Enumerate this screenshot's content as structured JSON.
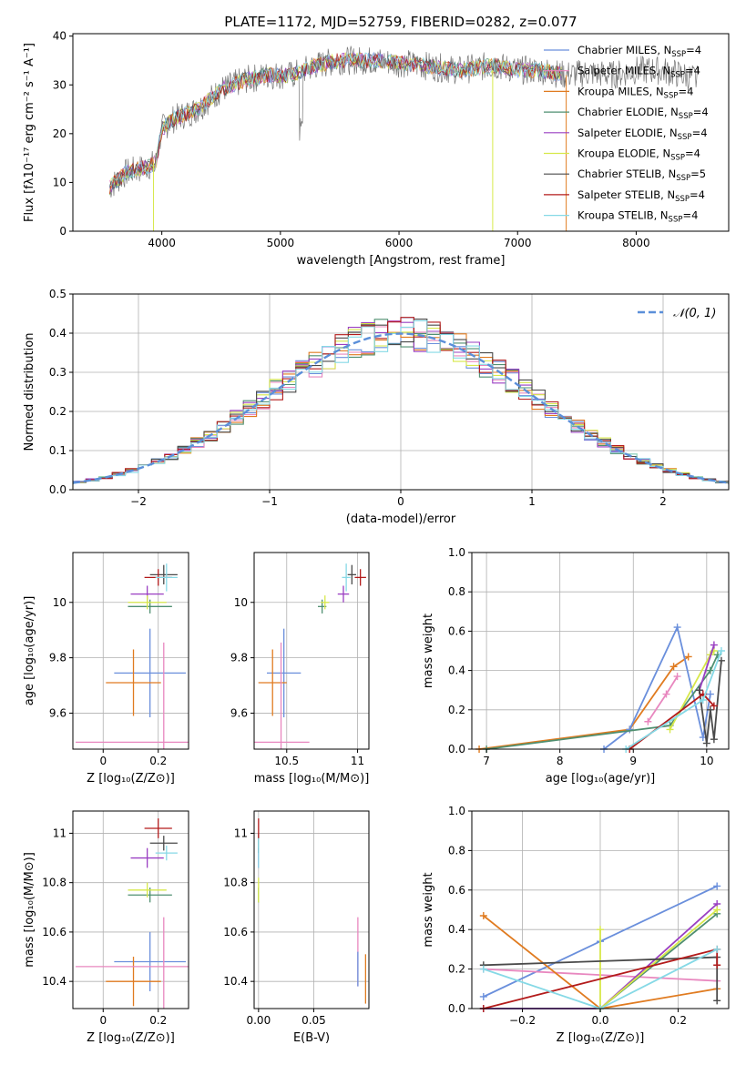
{
  "figure": {
    "title": "PLATE=1172, MJD=52759, FIBERID=0282, z=0.077"
  },
  "model_legend": [
    {
      "label": "Chabrier MILES, N",
      "sub": "SSP",
      "tail": "=4",
      "color": "#6a8fdc"
    },
    {
      "label": "Salpeter MILES, N",
      "sub": "SSP",
      "tail": "=4",
      "color": "#e887bf"
    },
    {
      "label": "Kroupa MILES, N",
      "sub": "SSP",
      "tail": "=4",
      "color": "#e07b20"
    },
    {
      "label": "Chabrier ELODIE, N",
      "sub": "SSP",
      "tail": "=4",
      "color": "#4f8f70"
    },
    {
      "label": "Salpeter ELODIE, N",
      "sub": "SSP",
      "tail": "=4",
      "color": "#9a3fc2"
    },
    {
      "label": "Kroupa ELODIE, N",
      "sub": "SSP",
      "tail": "=4",
      "color": "#d7e84a"
    },
    {
      "label": "Chabrier STELIB, N",
      "sub": "SSP",
      "tail": "=5",
      "color": "#4a4a4a"
    },
    {
      "label": "Salpeter STELIB, N",
      "sub": "SSP",
      "tail": "=4",
      "color": "#b31b1b"
    },
    {
      "label": "Kroupa STELIB, N",
      "sub": "SSP",
      "tail": "=4",
      "color": "#86d9e6"
    }
  ],
  "chart_data": [
    {
      "id": "spectrum",
      "type": "line",
      "xlabel": "wavelength [Angstrom, rest frame]",
      "ylabel": "Flux [fλ10⁻¹⁷ erg cm⁻² s⁻¹ A⁻¹]",
      "xlim": [
        3250,
        8780
      ],
      "ylim": [
        0,
        40.5
      ],
      "xticks": [
        4000,
        5000,
        6000,
        7000,
        8000
      ],
      "yticks": [
        0,
        10,
        20,
        30,
        40
      ],
      "legend_position": "right",
      "continuum": {
        "x": [
          3560,
          3700,
          3850,
          3950,
          4000,
          4100,
          4200,
          4300,
          4400,
          4500,
          4700,
          4900,
          5100,
          5300,
          5500,
          5800,
          6000,
          6200,
          6500,
          6800,
          7000,
          7200,
          7400,
          7600,
          7800,
          8000,
          8200,
          8400,
          8520
        ],
        "y": [
          9,
          12,
          13,
          14,
          21,
          23,
          24,
          25,
          27,
          29,
          31,
          32,
          32,
          34,
          35,
          35,
          34.5,
          34,
          33,
          34,
          33,
          33,
          32,
          32.5,
          32,
          33,
          33,
          32,
          31
        ]
      }
    },
    {
      "id": "residuals",
      "type": "histogram",
      "xlabel": "(data-model)/error",
      "ylabel": "Normed distribution",
      "xlim": [
        -2.5,
        2.5
      ],
      "ylim": [
        0,
        0.5
      ],
      "xticks": [
        -2,
        -1,
        0,
        1,
        2
      ],
      "xtick_labels": [
        "−2",
        "−1",
        "0",
        "1",
        "2"
      ],
      "yticks": [
        0,
        0.1,
        0.2,
        0.3,
        0.4,
        0.5
      ],
      "ytick_labels": [
        "0.0",
        "0.1",
        "0.2",
        "0.3",
        "0.4",
        "0.5"
      ],
      "grid": true,
      "bin_width": 0.1,
      "legend": "𝒩(0, 1)",
      "legend_position": "top-right"
    },
    {
      "id": "age_vs_Z",
      "type": "scatter",
      "xlabel": "Z [log₁₀(Z/Z⊙)]",
      "ylabel": "age  [log₁₀(age/yr)]",
      "xlim": [
        -0.11,
        0.31
      ],
      "ylim": [
        9.47,
        10.18
      ],
      "xticks": [
        0.0,
        0.2
      ],
      "yticks": [
        9.6,
        9.8,
        10.0
      ],
      "grid": true,
      "points": [
        {
          "x": 0.17,
          "y": 9.745,
          "xerr": 0.13,
          "yerr": 0.16,
          "color": "#6a8fdc"
        },
        {
          "x": 0.11,
          "y": 9.71,
          "xerr": 0.1,
          "yerr": 0.12,
          "color": "#e07b20"
        },
        {
          "x": 0.22,
          "y": 9.495,
          "xerr": 0.32,
          "yerr": 0.36,
          "color": "#e887bf"
        },
        {
          "x": 0.17,
          "y": 9.985,
          "xerr": 0.08,
          "yerr": 0.025,
          "color": "#4f8f70"
        },
        {
          "x": 0.16,
          "y": 10.03,
          "xerr": 0.06,
          "yerr": 0.03,
          "color": "#9a3fc2"
        },
        {
          "x": 0.16,
          "y": 10.0,
          "xerr": 0.07,
          "yerr": 0.025,
          "color": "#d7e84a"
        },
        {
          "x": 0.22,
          "y": 10.1,
          "xerr": 0.05,
          "yerr": 0.035,
          "color": "#4a4a4a"
        },
        {
          "x": 0.2,
          "y": 10.09,
          "xerr": 0.05,
          "yerr": 0.03,
          "color": "#b31b1b"
        },
        {
          "x": 0.23,
          "y": 10.09,
          "xerr": 0.04,
          "yerr": 0.05,
          "color": "#86d9e6"
        }
      ]
    },
    {
      "id": "age_vs_mass",
      "type": "scatter",
      "xlabel": "mass [log₁₀(M/M⊙)]",
      "ylabel": "",
      "xlim": [
        10.27,
        11.08
      ],
      "ylim": [
        9.47,
        10.18
      ],
      "xticks": [
        10.5,
        11.0
      ],
      "yticks": [
        9.6,
        9.8,
        10.0
      ],
      "grid": true,
      "points": [
        {
          "x": 10.48,
          "y": 9.745,
          "xerr": 0.12,
          "yerr": 0.16,
          "color": "#6a8fdc"
        },
        {
          "x": 10.4,
          "y": 9.71,
          "xerr": 0.1,
          "yerr": 0.12,
          "color": "#e07b20"
        },
        {
          "x": 10.46,
          "y": 9.495,
          "xerr": 0.2,
          "yerr": 0.36,
          "color": "#e887bf"
        },
        {
          "x": 10.75,
          "y": 9.985,
          "xerr": 0.03,
          "yerr": 0.025,
          "color": "#4f8f70"
        },
        {
          "x": 10.9,
          "y": 10.03,
          "xerr": 0.04,
          "yerr": 0.03,
          "color": "#9a3fc2"
        },
        {
          "x": 10.77,
          "y": 10.0,
          "xerr": 0.03,
          "yerr": 0.025,
          "color": "#d7e84a"
        },
        {
          "x": 10.96,
          "y": 10.1,
          "xerr": 0.03,
          "yerr": 0.035,
          "color": "#4a4a4a"
        },
        {
          "x": 11.02,
          "y": 10.09,
          "xerr": 0.04,
          "yerr": 0.03,
          "color": "#b31b1b"
        },
        {
          "x": 10.92,
          "y": 10.09,
          "xerr": 0.03,
          "yerr": 0.05,
          "color": "#86d9e6"
        }
      ]
    },
    {
      "id": "weight_vs_age",
      "type": "line",
      "xlabel": "age  [log₁₀(age/yr)]",
      "ylabel": "mass weight",
      "xlim": [
        6.8,
        10.3
      ],
      "ylim": [
        0,
        1
      ],
      "xticks": [
        7,
        8,
        9,
        10
      ],
      "yticks": [
        0,
        0.2,
        0.4,
        0.6,
        0.8,
        1.0
      ],
      "ytick_labels": [
        "0.0",
        "0.2",
        "0.4",
        "0.6",
        "0.8",
        "1.0"
      ],
      "grid": true,
      "series": [
        {
          "color": "#e07b20",
          "x": [
            6.9,
            8.95,
            9.55,
            9.75
          ],
          "y": [
            0.0,
            0.1,
            0.42,
            0.47
          ]
        },
        {
          "color": "#6a8fdc",
          "x": [
            8.6,
            8.95,
            9.6,
            9.95,
            10.05
          ],
          "y": [
            0.0,
            0.1,
            0.62,
            0.06,
            0.28
          ]
        },
        {
          "color": "#e887bf",
          "x": [
            9.2,
            9.45,
            9.6
          ],
          "y": [
            0.14,
            0.28,
            0.37
          ]
        },
        {
          "color": "#4f8f70",
          "x": [
            7.0,
            9.5,
            10.05,
            10.15
          ],
          "y": [
            0.0,
            0.12,
            0.4,
            0.48
          ]
        },
        {
          "color": "#d7e84a",
          "x": [
            9.5,
            10.05,
            10.1
          ],
          "y": [
            0.1,
            0.48,
            0.5
          ]
        },
        {
          "color": "#9a3fc2",
          "x": [
            9.9,
            10.1
          ],
          "y": [
            0.3,
            0.53
          ]
        },
        {
          "color": "#4a4a4a",
          "x": [
            9.9,
            10.0,
            10.05,
            10.1,
            10.2
          ],
          "y": [
            0.3,
            0.03,
            0.2,
            0.05,
            0.45
          ]
        },
        {
          "color": "#b31b1b",
          "x": [
            8.95,
            9.95,
            10.1
          ],
          "y": [
            0.0,
            0.28,
            0.22
          ]
        },
        {
          "color": "#86d9e6",
          "x": [
            8.9,
            9.95,
            10.2
          ],
          "y": [
            0.0,
            0.25,
            0.5
          ]
        }
      ]
    },
    {
      "id": "mass_vs_Z",
      "type": "scatter",
      "xlabel": "Z [log₁₀(Z/Z⊙)]",
      "ylabel": "mass [log₁₀(M/M⊙)]",
      "xlim": [
        -0.11,
        0.31
      ],
      "ylim": [
        10.29,
        11.09
      ],
      "xticks": [
        0.0,
        0.2
      ],
      "yticks": [
        10.4,
        10.6,
        10.8,
        11.0
      ],
      "grid": true,
      "points": [
        {
          "x": 0.17,
          "y": 10.48,
          "xerr": 0.13,
          "yerr": 0.12,
          "color": "#6a8fdc"
        },
        {
          "x": 0.11,
          "y": 10.4,
          "xerr": 0.1,
          "yerr": 0.1,
          "color": "#e07b20"
        },
        {
          "x": 0.22,
          "y": 10.46,
          "xerr": 0.32,
          "yerr": 0.2,
          "color": "#e887bf"
        },
        {
          "x": 0.17,
          "y": 10.75,
          "xerr": 0.08,
          "yerr": 0.03,
          "color": "#4f8f70"
        },
        {
          "x": 0.16,
          "y": 10.9,
          "xerr": 0.06,
          "yerr": 0.04,
          "color": "#9a3fc2"
        },
        {
          "x": 0.16,
          "y": 10.77,
          "xerr": 0.07,
          "yerr": 0.03,
          "color": "#d7e84a"
        },
        {
          "x": 0.22,
          "y": 10.96,
          "xerr": 0.05,
          "yerr": 0.03,
          "color": "#4a4a4a"
        },
        {
          "x": 0.2,
          "y": 11.02,
          "xerr": 0.05,
          "yerr": 0.04,
          "color": "#b31b1b"
        },
        {
          "x": 0.23,
          "y": 10.92,
          "xerr": 0.04,
          "yerr": 0.03,
          "color": "#86d9e6"
        }
      ]
    },
    {
      "id": "mass_vs_ebv",
      "type": "scatter",
      "xlabel": "E(B-V)",
      "ylabel": "",
      "xlim": [
        -0.004,
        0.1
      ],
      "ylim": [
        10.29,
        11.09
      ],
      "xticks": [
        0.0,
        0.05
      ],
      "xtick_labels": [
        "0.00",
        "0.05"
      ],
      "yticks": [
        10.4,
        10.6,
        10.8,
        11.0
      ],
      "grid": true,
      "points": [
        {
          "x": 0.09,
          "y": 10.52,
          "xerr": 0,
          "yerr": 0.14,
          "color": "#e887bf"
        },
        {
          "x": 0.097,
          "y": 10.41,
          "xerr": 0,
          "yerr": 0.1,
          "color": "#e07b20"
        },
        {
          "x": 0.09,
          "y": 10.45,
          "xerr": 0,
          "yerr": 0.07,
          "color": "#6a8fdc"
        },
        {
          "x": 0.0,
          "y": 10.75,
          "xerr": 0,
          "yerr": 0.03,
          "color": "#4f8f70"
        },
        {
          "x": 0.0,
          "y": 10.9,
          "xerr": 0,
          "yerr": 0.04,
          "color": "#9a3fc2"
        },
        {
          "x": 0.0,
          "y": 10.77,
          "xerr": 0,
          "yerr": 0.05,
          "color": "#d7e84a"
        },
        {
          "x": 0.0,
          "y": 10.96,
          "xerr": 0,
          "yerr": 0.04,
          "color": "#4a4a4a"
        },
        {
          "x": 0.0,
          "y": 11.02,
          "xerr": 0,
          "yerr": 0.04,
          "color": "#b31b1b"
        },
        {
          "x": 0.0,
          "y": 10.92,
          "xerr": 0,
          "yerr": 0.06,
          "color": "#86d9e6"
        }
      ]
    },
    {
      "id": "weight_vs_Z",
      "type": "line",
      "xlabel": "Z [log₁₀(Z/Z⊙)]",
      "ylabel": "mass weight",
      "xlim": [
        -0.33,
        0.33
      ],
      "ylim": [
        0,
        1
      ],
      "xticks": [
        -0.2,
        0.0,
        0.2
      ],
      "xtick_labels": [
        "−0.2",
        "0.0",
        "0.2"
      ],
      "yticks": [
        0,
        0.2,
        0.4,
        0.6,
        0.8,
        1.0
      ],
      "ytick_labels": [
        "0.0",
        "0.2",
        "0.4",
        "0.6",
        "0.8",
        "1.0"
      ],
      "grid": true,
      "series": [
        {
          "color": "#6a8fdc",
          "x": [
            -0.3,
            0.0,
            0.3
          ],
          "y": [
            0.06,
            0.34,
            0.62
          ]
        },
        {
          "color": "#e887bf",
          "x": [
            -0.3,
            0.3
          ],
          "y": [
            0.2,
            0.14
          ]
        },
        {
          "color": "#e07b20",
          "x": [
            -0.3,
            0.0,
            0.3
          ],
          "y": [
            0.47,
            0.0,
            0.1
          ]
        },
        {
          "color": "#4f8f70",
          "x": [
            -0.3,
            0.0,
            0.3
          ],
          "y": [
            0.0,
            0.0,
            0.48
          ]
        },
        {
          "color": "#9a3fc2",
          "x": [
            -0.3,
            0.0,
            0.3
          ],
          "y": [
            0.0,
            0.0,
            0.53
          ]
        },
        {
          "color": "#d7e84a",
          "x": [
            0.0,
            0.0,
            0.3
          ],
          "y": [
            0.4,
            0.0,
            0.5
          ]
        },
        {
          "color": "#4a4a4a",
          "x": [
            -0.3,
            0.3,
            0.3
          ],
          "y": [
            0.22,
            0.26,
            0.04
          ]
        },
        {
          "color": "#b31b1b",
          "x": [
            -0.3,
            0.3,
            0.3
          ],
          "y": [
            0.0,
            0.3,
            0.22
          ]
        },
        {
          "color": "#86d9e6",
          "x": [
            -0.3,
            0.0,
            0.3
          ],
          "y": [
            0.2,
            0.0,
            0.3
          ]
        }
      ]
    }
  ]
}
